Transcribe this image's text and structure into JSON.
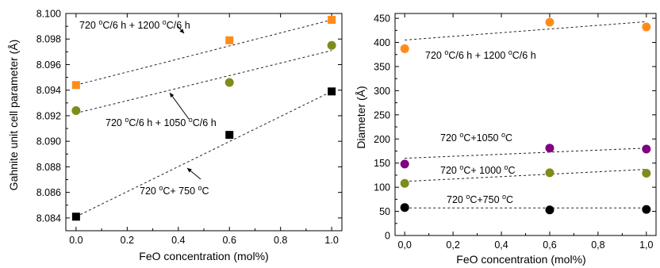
{
  "chart_data": [
    {
      "type": "scatter",
      "xlabel": "FeO concentration (mol%)",
      "ylabel": "Gahnite unit cell parameter (Å)",
      "xlim": [
        -0.04,
        1.04
      ],
      "ylim": [
        8.083,
        8.1
      ],
      "xticks": [
        0.0,
        0.2,
        0.4,
        0.6,
        0.8,
        1.0
      ],
      "xtick_labels": [
        "0.0",
        "0.2",
        "0.4",
        "0.6",
        "0.8",
        "1.0"
      ],
      "yticks": [
        8.084,
        8.086,
        8.088,
        8.09,
        8.092,
        8.094,
        8.096,
        8.098,
        8.1
      ],
      "ytick_labels": [
        "8.084",
        "8.086",
        "8.088",
        "8.090",
        "8.092",
        "8.094",
        "8.096",
        "8.098",
        "8.100"
      ],
      "grid": false,
      "series": [
        {
          "name": "720 °C/6 h + 1200 °C/6 h",
          "color": "#ff8c1a",
          "marker": "square",
          "x": [
            0.0,
            0.6,
            1.0
          ],
          "y": [
            8.0944,
            8.0979,
            8.0995
          ],
          "fit": [
            [
              0.0,
              8.0944
            ],
            [
              1.0,
              8.0995
            ]
          ]
        },
        {
          "name": "720 °C/6 h + 1050 °C/6 h",
          "color": "#7f8c1a",
          "marker": "circle",
          "x": [
            0.0,
            0.6,
            1.0
          ],
          "y": [
            8.0924,
            8.0946,
            8.0975
          ],
          "fit": [
            [
              0.0,
              8.0922
            ],
            [
              1.0,
              8.0971
            ]
          ]
        },
        {
          "name": "720 °C+ 750 °C",
          "color": "#000000",
          "marker": "square",
          "x": [
            0.0,
            0.6,
            1.0
          ],
          "y": [
            8.0841,
            8.0905,
            8.0939
          ],
          "fit": [
            [
              0.0,
              8.0841
            ],
            [
              1.0,
              8.0939
            ]
          ]
        }
      ],
      "annotations": [
        {
          "text": "720 °C/6 h + 1200 °C/6 h",
          "series": 0
        },
        {
          "text": "720 °C/6 h + 1050 °C/6 h",
          "series": 1
        },
        {
          "text": "720 °C+ 750 °C",
          "series": 2
        }
      ]
    },
    {
      "type": "scatter",
      "xlabel": "FeO concentration (mol%)",
      "ylabel": "Diameter (Å)",
      "xlim": [
        -0.04,
        1.04
      ],
      "ylim": [
        0,
        460
      ],
      "xticks": [
        0.0,
        0.2,
        0.4,
        0.6,
        0.8,
        1.0
      ],
      "xtick_labels": [
        "0,0",
        "0,2",
        "0,4",
        "0,6",
        "0,8",
        "1,0"
      ],
      "yticks": [
        0,
        50,
        100,
        150,
        200,
        250,
        300,
        350,
        400,
        450
      ],
      "ytick_labels": [
        "0",
        "50",
        "100",
        "150",
        "200",
        "250",
        "300",
        "350",
        "400",
        "450"
      ],
      "grid": false,
      "series": [
        {
          "name": "720 °C/6 h + 1200 °C/6 h",
          "color": "#ff8c1a",
          "marker": "circle",
          "x": [
            0.0,
            0.6,
            1.0
          ],
          "y": [
            387,
            442,
            432
          ],
          "fit": [
            [
              0.0,
              405
            ],
            [
              1.0,
              443
            ]
          ]
        },
        {
          "name": "720 °C+1050 °C",
          "color": "#800080",
          "marker": "circle",
          "x": [
            0.0,
            0.6,
            1.0
          ],
          "y": [
            148,
            181,
            179
          ],
          "fit": [
            [
              0.0,
              160
            ],
            [
              1.0,
              181
            ]
          ]
        },
        {
          "name": "720 °C+ 1000 °C",
          "color": "#7f8c1a",
          "marker": "circle",
          "x": [
            0.0,
            0.6,
            1.0
          ],
          "y": [
            108,
            130,
            129
          ],
          "fit": [
            [
              0.0,
              112
            ],
            [
              1.0,
              137
            ]
          ]
        },
        {
          "name": "720 °C+750 °C",
          "color": "#000000",
          "marker": "circle",
          "x": [
            0.0,
            0.6,
            1.0
          ],
          "y": [
            58,
            53,
            54
          ],
          "fit": [
            [
              0.0,
              57
            ],
            [
              1.0,
              57
            ]
          ]
        }
      ],
      "annotations": [
        {
          "text": "720 °C/6 h + 1200 °C/6 h",
          "series": 0
        },
        {
          "text": "720 °C+1050 °C",
          "series": 1
        },
        {
          "text": "720 °C+ 1000 °C",
          "series": 2
        },
        {
          "text": "720 °C+750 °C",
          "series": 3
        }
      ]
    }
  ]
}
